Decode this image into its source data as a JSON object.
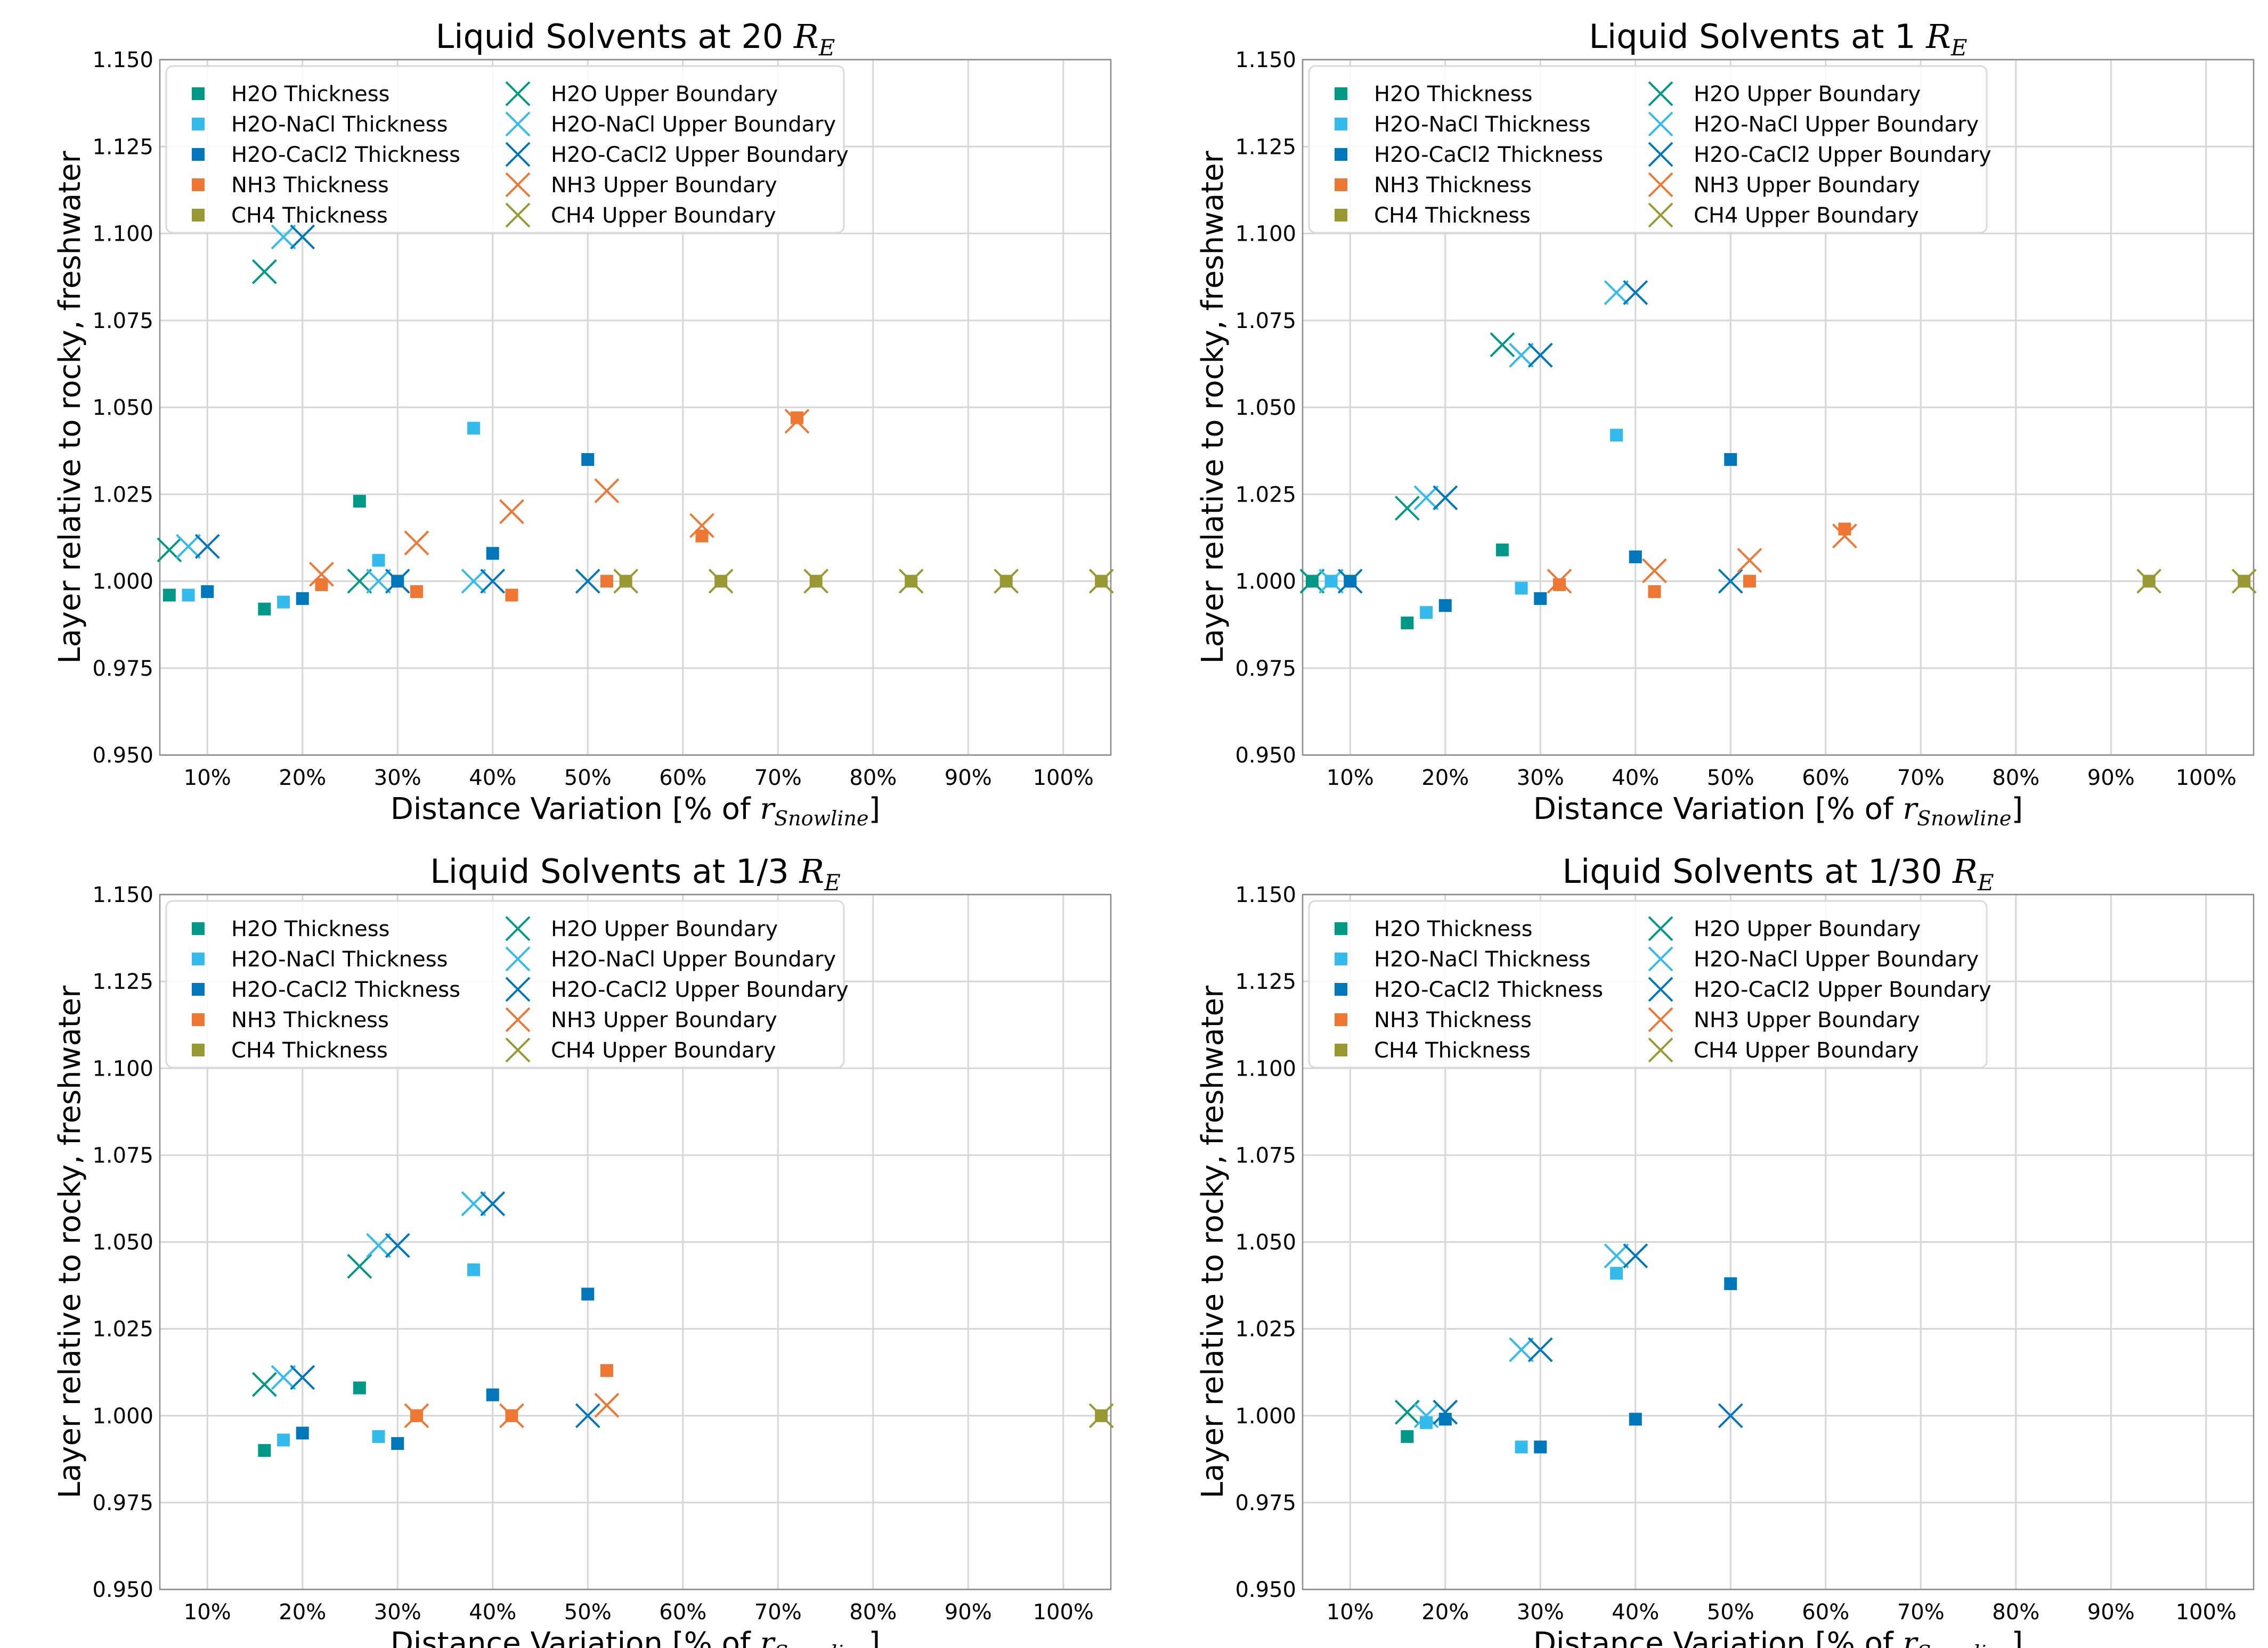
{
  "figure": {
    "common": {
      "xlabel": "Distance Variation [% of",
      "xlabel_sub_var": "r",
      "xlabel_sub_index": "Snowline",
      "xlabel_close": "]",
      "ylabel": "Layer relative to rocky, freshwater",
      "x_ticks": [
        10,
        20,
        30,
        40,
        50,
        60,
        70,
        80,
        90,
        100
      ],
      "x_tick_labels": [
        "10%",
        "20%",
        "30%",
        "40%",
        "50%",
        "60%",
        "70%",
        "80%",
        "90%",
        "100%"
      ],
      "y_ticks": [
        0.95,
        0.975,
        1.0,
        1.025,
        1.05,
        1.075,
        1.1,
        1.125,
        1.15
      ],
      "y_tick_labels": [
        "0.950",
        "0.975",
        "1.000",
        "1.025",
        "1.050",
        "1.075",
        "1.100",
        "1.125",
        "1.150"
      ],
      "xlim": [
        5,
        105
      ],
      "ylim": [
        0.95,
        1.15
      ],
      "grid": true,
      "legend_position": "top-left",
      "colors": {
        "H2O": "#009988",
        "H2O-NaCl": "#33BBEE",
        "H2O-CaCl2": "#0077BB",
        "NH3": "#EE7733",
        "CH4": "#999933"
      },
      "legend": [
        {
          "name": "H2O Thickness",
          "solvent": "H2O",
          "marker": "square"
        },
        {
          "name": "H2O-NaCl Thickness",
          "solvent": "H2O-NaCl",
          "marker": "square"
        },
        {
          "name": "H2O-CaCl2 Thickness",
          "solvent": "H2O-CaCl2",
          "marker": "square"
        },
        {
          "name": "NH3 Thickness",
          "solvent": "NH3",
          "marker": "square"
        },
        {
          "name": "CH4 Thickness",
          "solvent": "CH4",
          "marker": "square"
        },
        {
          "name": "H2O Upper Boundary",
          "solvent": "H2O",
          "marker": "x"
        },
        {
          "name": "H2O-NaCl Upper Boundary",
          "solvent": "H2O-NaCl",
          "marker": "x"
        },
        {
          "name": "H2O-CaCl2 Upper Boundary",
          "solvent": "H2O-CaCl2",
          "marker": "x"
        },
        {
          "name": "NH3 Upper Boundary",
          "solvent": "NH3",
          "marker": "x"
        },
        {
          "name": "CH4 Upper Boundary",
          "solvent": "CH4",
          "marker": "x"
        }
      ]
    }
  },
  "chart_data": [
    {
      "type": "scatter",
      "title": "Liquid Solvents at 20",
      "title_unit_var": "R",
      "title_unit_sub": "E",
      "xlabel": "Distance Variation [% of r_Snowline]",
      "ylabel": "Layer relative to rocky, freshwater",
      "xlim": [
        5,
        105
      ],
      "ylim": [
        0.95,
        1.15
      ],
      "series": [
        {
          "name": "H2O Thickness",
          "points": [
            [
              6,
              0.996
            ],
            [
              16,
              0.992
            ],
            [
              26,
              1.023
            ]
          ]
        },
        {
          "name": "H2O-NaCl Thickness",
          "points": [
            [
              8,
              0.996
            ],
            [
              18,
              0.994
            ],
            [
              28,
              1.006
            ],
            [
              38,
              1.044
            ]
          ]
        },
        {
          "name": "H2O-CaCl2 Thickness",
          "points": [
            [
              10,
              0.997
            ],
            [
              20,
              0.995
            ],
            [
              30,
              1.0
            ],
            [
              40,
              1.008
            ],
            [
              50,
              1.035
            ]
          ]
        },
        {
          "name": "NH3 Thickness",
          "points": [
            [
              22,
              0.999
            ],
            [
              32,
              0.997
            ],
            [
              42,
              0.996
            ],
            [
              52,
              1.0
            ],
            [
              62,
              1.013
            ],
            [
              72,
              1.047
            ]
          ]
        },
        {
          "name": "CH4 Thickness",
          "points": [
            [
              54,
              1.0
            ],
            [
              64,
              1.0
            ],
            [
              74,
              1.0
            ],
            [
              84,
              1.0
            ],
            [
              94,
              1.0
            ],
            [
              104,
              1.0
            ]
          ]
        },
        {
          "name": "H2O Upper Boundary",
          "points": [
            [
              6,
              1.009
            ],
            [
              16,
              1.089
            ],
            [
              26,
              1.0
            ]
          ]
        },
        {
          "name": "H2O-NaCl Upper Boundary",
          "points": [
            [
              8,
              1.01
            ],
            [
              18,
              1.099
            ],
            [
              28,
              1.0
            ],
            [
              38,
              1.0
            ]
          ]
        },
        {
          "name": "H2O-CaCl2 Upper Boundary",
          "points": [
            [
              10,
              1.01
            ],
            [
              20,
              1.099
            ],
            [
              30,
              1.0
            ],
            [
              40,
              1.0
            ],
            [
              50,
              1.0
            ]
          ]
        },
        {
          "name": "NH3 Upper Boundary",
          "points": [
            [
              22,
              1.002
            ],
            [
              32,
              1.011
            ],
            [
              42,
              1.02
            ],
            [
              52,
              1.026
            ],
            [
              62,
              1.016
            ],
            [
              72,
              1.046
            ]
          ]
        },
        {
          "name": "CH4 Upper Boundary",
          "points": [
            [
              54,
              1.0
            ],
            [
              64,
              1.0
            ],
            [
              74,
              1.0
            ],
            [
              84,
              1.0
            ],
            [
              94,
              1.0
            ],
            [
              104,
              1.0
            ]
          ]
        }
      ]
    },
    {
      "type": "scatter",
      "title": "Liquid Solvents at 1",
      "title_unit_var": "R",
      "title_unit_sub": "E",
      "xlabel": "Distance Variation [% of r_Snowline]",
      "ylabel": "Layer relative to rocky, freshwater",
      "xlim": [
        5,
        105
      ],
      "ylim": [
        0.95,
        1.15
      ],
      "series": [
        {
          "name": "H2O Thickness",
          "points": [
            [
              6,
              1.0
            ],
            [
              16,
              0.988
            ],
            [
              26,
              1.009
            ]
          ]
        },
        {
          "name": "H2O-NaCl Thickness",
          "points": [
            [
              8,
              1.0
            ],
            [
              18,
              0.991
            ],
            [
              28,
              0.998
            ],
            [
              38,
              1.042
            ]
          ]
        },
        {
          "name": "H2O-CaCl2 Thickness",
          "points": [
            [
              10,
              1.0
            ],
            [
              20,
              0.993
            ],
            [
              30,
              0.995
            ],
            [
              40,
              1.007
            ],
            [
              50,
              1.035
            ]
          ]
        },
        {
          "name": "NH3 Thickness",
          "points": [
            [
              32,
              0.999
            ],
            [
              42,
              0.997
            ],
            [
              52,
              1.0
            ],
            [
              62,
              1.015
            ]
          ]
        },
        {
          "name": "CH4 Thickness",
          "points": [
            [
              94,
              1.0
            ],
            [
              104,
              1.0
            ]
          ]
        },
        {
          "name": "H2O Upper Boundary",
          "points": [
            [
              6,
              1.0
            ],
            [
              16,
              1.021
            ],
            [
              26,
              1.068
            ]
          ]
        },
        {
          "name": "H2O-NaCl Upper Boundary",
          "points": [
            [
              8,
              1.0
            ],
            [
              18,
              1.024
            ],
            [
              28,
              1.065
            ],
            [
              38,
              1.083
            ]
          ]
        },
        {
          "name": "H2O-CaCl2 Upper Boundary",
          "points": [
            [
              10,
              1.0
            ],
            [
              20,
              1.024
            ],
            [
              30,
              1.065
            ],
            [
              40,
              1.083
            ],
            [
              50,
              1.0
            ]
          ]
        },
        {
          "name": "NH3 Upper Boundary",
          "points": [
            [
              32,
              1.0
            ],
            [
              42,
              1.003
            ],
            [
              52,
              1.006
            ],
            [
              62,
              1.013
            ]
          ]
        },
        {
          "name": "CH4 Upper Boundary",
          "points": [
            [
              94,
              1.0
            ],
            [
              104,
              1.0
            ]
          ]
        }
      ]
    },
    {
      "type": "scatter",
      "title": "Liquid Solvents at 1/3",
      "title_unit_var": "R",
      "title_unit_sub": "E",
      "xlabel": "Distance Variation [% of r_Snowline]",
      "ylabel": "Layer relative to rocky, freshwater",
      "xlim": [
        5,
        105
      ],
      "ylim": [
        0.95,
        1.15
      ],
      "series": [
        {
          "name": "H2O Thickness",
          "points": [
            [
              16,
              0.99
            ],
            [
              26,
              1.008
            ]
          ]
        },
        {
          "name": "H2O-NaCl Thickness",
          "points": [
            [
              18,
              0.993
            ],
            [
              28,
              0.994
            ],
            [
              38,
              1.042
            ]
          ]
        },
        {
          "name": "H2O-CaCl2 Thickness",
          "points": [
            [
              20,
              0.995
            ],
            [
              30,
              0.992
            ],
            [
              40,
              1.006
            ],
            [
              50,
              1.035
            ]
          ]
        },
        {
          "name": "NH3 Thickness",
          "points": [
            [
              32,
              1.0
            ],
            [
              42,
              1.0
            ],
            [
              52,
              1.013
            ]
          ]
        },
        {
          "name": "CH4 Thickness",
          "points": [
            [
              104,
              1.0
            ]
          ]
        },
        {
          "name": "H2O Upper Boundary",
          "points": [
            [
              16,
              1.009
            ],
            [
              26,
              1.043
            ]
          ]
        },
        {
          "name": "H2O-NaCl Upper Boundary",
          "points": [
            [
              18,
              1.011
            ],
            [
              28,
              1.049
            ],
            [
              38,
              1.061
            ]
          ]
        },
        {
          "name": "H2O-CaCl2 Upper Boundary",
          "points": [
            [
              20,
              1.011
            ],
            [
              30,
              1.049
            ],
            [
              40,
              1.061
            ],
            [
              50,
              1.0
            ]
          ]
        },
        {
          "name": "NH3 Upper Boundary",
          "points": [
            [
              32,
              1.0
            ],
            [
              42,
              1.0
            ],
            [
              52,
              1.003
            ]
          ]
        },
        {
          "name": "CH4 Upper Boundary",
          "points": [
            [
              104,
              1.0
            ]
          ]
        }
      ]
    },
    {
      "type": "scatter",
      "title": "Liquid Solvents at 1/30",
      "title_unit_var": "R",
      "title_unit_sub": "E",
      "xlabel": "Distance Variation [% of r_Snowline]",
      "ylabel": "Layer relative to rocky, freshwater",
      "xlim": [
        5,
        105
      ],
      "ylim": [
        0.95,
        1.15
      ],
      "series": [
        {
          "name": "H2O Thickness",
          "points": [
            [
              16,
              0.994
            ]
          ]
        },
        {
          "name": "H2O-NaCl Thickness",
          "points": [
            [
              18,
              0.998
            ],
            [
              28,
              0.991
            ],
            [
              38,
              1.041
            ]
          ]
        },
        {
          "name": "H2O-CaCl2 Thickness",
          "points": [
            [
              20,
              0.999
            ],
            [
              30,
              0.991
            ],
            [
              40,
              0.999
            ],
            [
              50,
              1.038
            ]
          ]
        },
        {
          "name": "NH3 Thickness",
          "points": []
        },
        {
          "name": "CH4 Thickness",
          "points": []
        },
        {
          "name": "H2O Upper Boundary",
          "points": [
            [
              16,
              1.001
            ]
          ]
        },
        {
          "name": "H2O-NaCl Upper Boundary",
          "points": [
            [
              18,
              1.0
            ],
            [
              28,
              1.019
            ],
            [
              38,
              1.046
            ]
          ]
        },
        {
          "name": "H2O-CaCl2 Upper Boundary",
          "points": [
            [
              20,
              1.001
            ],
            [
              30,
              1.019
            ],
            [
              40,
              1.046
            ],
            [
              50,
              1.0
            ]
          ]
        },
        {
          "name": "NH3 Upper Boundary",
          "points": []
        },
        {
          "name": "CH4 Upper Boundary",
          "points": []
        }
      ]
    }
  ]
}
